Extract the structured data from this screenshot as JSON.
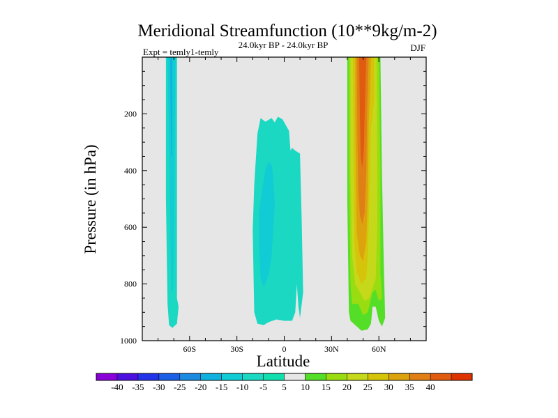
{
  "chart_data": {
    "type": "heatmap",
    "title": "Meridional Streamfunction (10**9kg/m-2)",
    "subtitle_left": "Expt = temly1-temly",
    "subtitle_center": "24.0kyr BP - 24.0kyr BP",
    "subtitle_right": "DJF",
    "xlabel": "Latitude",
    "ylabel": "Pressure (in hPa)",
    "xlim": [
      -90,
      90
    ],
    "ylim": [
      1000,
      0
    ],
    "x_ticks": [
      {
        "value": -60,
        "label": "60S"
      },
      {
        "value": -30,
        "label": "30S"
      },
      {
        "value": 0,
        "label": "0"
      },
      {
        "value": 30,
        "label": "30N"
      },
      {
        "value": 60,
        "label": "60N"
      }
    ],
    "y_ticks": [
      {
        "value": 200,
        "label": "200"
      },
      {
        "value": 400,
        "label": "400"
      },
      {
        "value": 600,
        "label": "600"
      },
      {
        "value": 800,
        "label": "800"
      },
      {
        "value": 1000,
        "label": "1000"
      }
    ],
    "background_color": "#e6e6e6",
    "colorbar": {
      "labels": [
        "-40",
        "-35",
        "-30",
        "-25",
        "-20",
        "-15",
        "-10",
        "-5",
        "5",
        "10",
        "15",
        "20",
        "25",
        "30",
        "35",
        "40"
      ],
      "colors": [
        "#8a00d8",
        "#4b0fe0",
        "#2233e8",
        "#1a5fe6",
        "#1a8be0",
        "#0fb1de",
        "#11cbd5",
        "#1ad8c2",
        "#11dfae",
        "#e6e6e6",
        "#55de28",
        "#99dd11",
        "#c6d81a",
        "#d6c40a",
        "#dca30f",
        "#e07f16",
        "#e05a0f",
        "#dd3300"
      ]
    },
    "regions": [
      {
        "label": "-5",
        "color": "#1ad8c2",
        "points": [
          [
            -75,
            0
          ],
          [
            -68,
            0
          ],
          [
            -68,
            850
          ],
          [
            -67,
            880
          ],
          [
            -68,
            940
          ],
          [
            -71,
            955
          ],
          [
            -73,
            945
          ],
          [
            -74,
            870
          ],
          [
            -75,
            500
          ]
        ]
      },
      {
        "label": "-10",
        "color": "#11cbd5",
        "points": [
          [
            -74,
            0
          ],
          [
            -69,
            0
          ],
          [
            -69.5,
            300
          ],
          [
            -70,
            700
          ],
          [
            -70.5,
            820
          ],
          [
            -71.5,
            830
          ],
          [
            -72,
            700
          ],
          [
            -73,
            300
          ]
        ]
      },
      {
        "label": "-15",
        "color": "#0fb1de",
        "points": [
          [
            -72.3,
            0
          ],
          [
            -71,
            0
          ],
          [
            -71.2,
            350
          ],
          [
            -71.7,
            350
          ],
          [
            -72,
            200
          ]
        ]
      },
      {
        "label": "-5",
        "color": "#1ad8c2",
        "points": [
          [
            -20,
            610
          ],
          [
            -19,
            450
          ],
          [
            -17,
            270
          ],
          [
            -15,
            215
          ],
          [
            -12,
            228
          ],
          [
            -8,
            215
          ],
          [
            -6,
            230
          ],
          [
            -4,
            210
          ],
          [
            -1,
            220
          ],
          [
            3,
            260
          ],
          [
            4,
            330
          ],
          [
            5,
            320
          ],
          [
            7,
            330
          ],
          [
            10,
            340
          ],
          [
            11,
            560
          ],
          [
            12,
            830
          ],
          [
            10,
            920
          ],
          [
            9,
            880
          ],
          [
            8,
            800
          ],
          [
            7,
            900
          ],
          [
            5,
            930
          ],
          [
            0,
            930
          ],
          [
            -5,
            925
          ],
          [
            -10,
            935
          ],
          [
            -13,
            945
          ],
          [
            -17,
            940
          ],
          [
            -19,
            900
          ]
        ]
      },
      {
        "label": "-10",
        "color": "#11cbd5",
        "points": [
          [
            -16,
            550
          ],
          [
            -14,
            470
          ],
          [
            -12,
            400
          ],
          [
            -10,
            370
          ],
          [
            -8,
            380
          ],
          [
            -7,
            420
          ],
          [
            -6,
            520
          ],
          [
            -8,
            700
          ],
          [
            -10,
            770
          ],
          [
            -13,
            810
          ],
          [
            -15,
            780
          ],
          [
            -16,
            650
          ]
        ]
      },
      {
        "label": "5",
        "color": "#55de28",
        "points": [
          [
            40,
            0
          ],
          [
            61,
            0
          ],
          [
            62,
            420
          ],
          [
            63,
            700
          ],
          [
            64,
            920
          ],
          [
            62,
            950
          ],
          [
            60,
            930
          ],
          [
            58,
            880
          ],
          [
            56,
            880
          ],
          [
            55,
            940
          ],
          [
            53,
            960
          ],
          [
            49,
            965
          ],
          [
            46,
            950
          ],
          [
            42,
            930
          ],
          [
            41,
            900
          ],
          [
            40,
            500
          ]
        ]
      },
      {
        "label": "10",
        "color": "#99dd11",
        "points": [
          [
            41,
            0
          ],
          [
            60,
            0
          ],
          [
            61,
            400
          ],
          [
            61,
            760
          ],
          [
            62,
            850
          ],
          [
            60,
            860
          ],
          [
            58,
            820
          ],
          [
            56,
            830
          ],
          [
            53,
            900
          ],
          [
            50,
            910
          ],
          [
            47,
            870
          ],
          [
            43,
            870
          ],
          [
            42,
            800
          ],
          [
            41,
            400
          ]
        ]
      },
      {
        "label": "15",
        "color": "#c6d81a",
        "points": [
          [
            42,
            0
          ],
          [
            58.5,
            0
          ],
          [
            59,
            350
          ],
          [
            59,
            600
          ],
          [
            58,
            780
          ],
          [
            54,
            850
          ],
          [
            51,
            860
          ],
          [
            48,
            830
          ],
          [
            45,
            800
          ],
          [
            43,
            700
          ],
          [
            42,
            400
          ]
        ]
      },
      {
        "label": "20",
        "color": "#d6c40a",
        "points": [
          [
            43.5,
            0
          ],
          [
            57,
            0
          ],
          [
            57,
            150
          ],
          [
            55,
            250
          ],
          [
            54,
            500
          ],
          [
            53,
            700
          ],
          [
            52,
            780
          ],
          [
            49,
            800
          ],
          [
            46,
            760
          ],
          [
            44.5,
            650
          ],
          [
            44,
            350
          ]
        ]
      },
      {
        "label": "25",
        "color": "#dca30f",
        "points": [
          [
            45,
            0
          ],
          [
            55,
            0
          ],
          [
            54.5,
            120
          ],
          [
            53.5,
            230
          ],
          [
            53,
            500
          ],
          [
            52,
            650
          ],
          [
            50,
            720
          ],
          [
            48,
            700
          ],
          [
            46,
            620
          ],
          [
            45.5,
            450
          ],
          [
            45,
            200
          ]
        ]
      },
      {
        "label": "30",
        "color": "#e07f16",
        "points": [
          [
            46,
            0
          ],
          [
            53.5,
            0
          ],
          [
            53,
            120
          ],
          [
            52.5,
            200
          ],
          [
            52,
            400
          ],
          [
            51,
            550
          ],
          [
            49.5,
            590
          ],
          [
            48,
            560
          ],
          [
            47,
            470
          ],
          [
            46.5,
            300
          ]
        ]
      },
      {
        "label": "35",
        "color": "#e05a0f",
        "points": [
          [
            47.5,
            0
          ],
          [
            52,
            0
          ],
          [
            51.5,
            100
          ],
          [
            51,
            200
          ],
          [
            50.5,
            320
          ],
          [
            49.5,
            390
          ],
          [
            48.5,
            350
          ],
          [
            48,
            200
          ]
        ]
      }
    ]
  }
}
